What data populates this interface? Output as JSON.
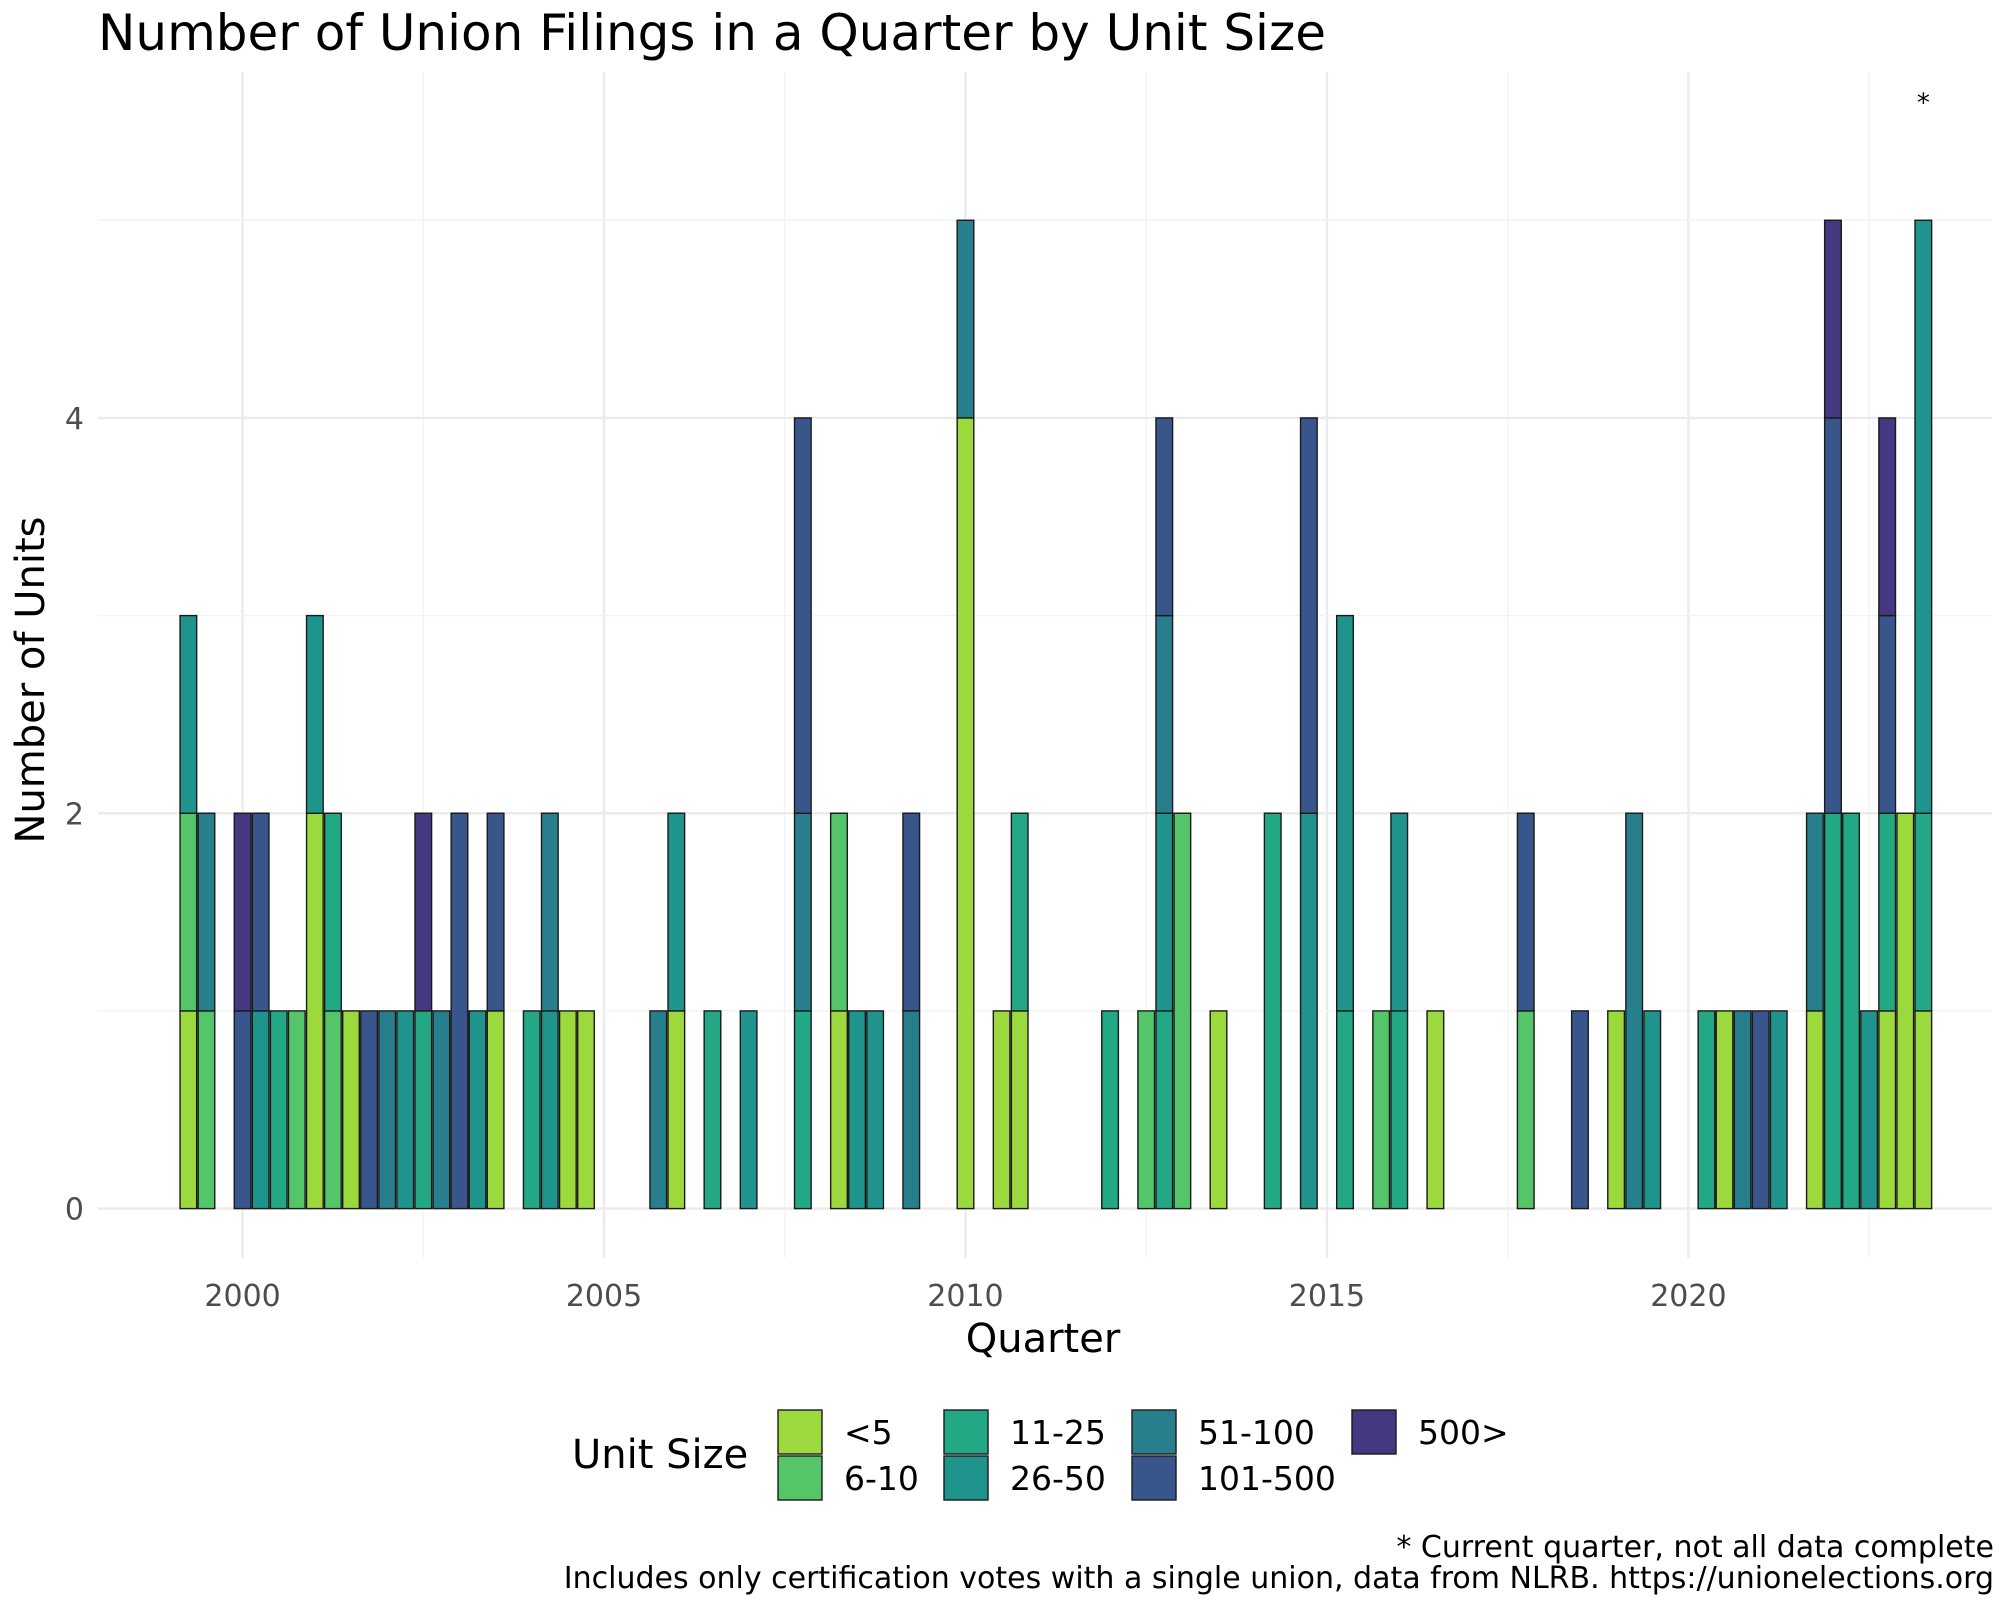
{
  "chart_data": {
    "type": "bar",
    "stacked": true,
    "title": "Number of Union Filings in a Quarter by Unit Size",
    "xlabel": "Quarter",
    "ylabel": "Number of Units",
    "xlim": [
      1998.0,
      2024.2
    ],
    "ylim": [
      -0.25,
      5.75
    ],
    "x_ticks": [
      2000,
      2005,
      2010,
      2015,
      2020
    ],
    "y_ticks": [
      0,
      2,
      4
    ],
    "grid": true,
    "legend": {
      "title": "Unit Size",
      "position": "bottom",
      "entries": [
        "<5",
        "6-10",
        "11-25",
        "26-50",
        "51-100",
        "101-500",
        "500>"
      ]
    },
    "colors": {
      "<5": "#9bd93c",
      "6-10": "#54c568",
      "11-25": "#22a884",
      "26-50": "#1f948c",
      "51-100": "#277f8e",
      "101-500": "#39568c",
      "500>": "#453781"
    },
    "bars": [
      {
        "x": 1999.25,
        "segments": {
          "<5": 1,
          "6-10": 1,
          "26-50": 1
        }
      },
      {
        "x": 1999.5,
        "segments": {
          "6-10": 1,
          "51-100": 1
        }
      },
      {
        "x": 2000.0,
        "segments": {
          "101-500": 1,
          "500>": 1
        }
      },
      {
        "x": 2000.25,
        "segments": {
          "26-50": 1,
          "101-500": 1
        }
      },
      {
        "x": 2000.5,
        "segments": {
          "11-25": 1
        }
      },
      {
        "x": 2000.75,
        "segments": {
          "6-10": 1
        }
      },
      {
        "x": 2001.0,
        "segments": {
          "<5": 2,
          "26-50": 1
        }
      },
      {
        "x": 2001.25,
        "segments": {
          "6-10": 1,
          "11-25": 1
        }
      },
      {
        "x": 2001.5,
        "segments": {
          "<5": 1
        }
      },
      {
        "x": 2001.75,
        "segments": {
          "101-500": 1
        }
      },
      {
        "x": 2002.0,
        "segments": {
          "51-100": 1
        }
      },
      {
        "x": 2002.25,
        "segments": {
          "26-50": 1
        }
      },
      {
        "x": 2002.5,
        "segments": {
          "11-25": 1,
          "500>": 1
        }
      },
      {
        "x": 2002.75,
        "segments": {
          "51-100": 1
        }
      },
      {
        "x": 2003.0,
        "segments": {
          "101-500": 2
        }
      },
      {
        "x": 2003.25,
        "segments": {
          "26-50": 1
        }
      },
      {
        "x": 2003.5,
        "segments": {
          "<5": 1,
          "101-500": 1
        }
      },
      {
        "x": 2004.0,
        "segments": {
          "11-25": 1
        }
      },
      {
        "x": 2004.25,
        "segments": {
          "26-50": 1,
          "51-100": 1
        }
      },
      {
        "x": 2004.5,
        "segments": {
          "<5": 1
        }
      },
      {
        "x": 2004.75,
        "segments": {
          "<5": 1
        }
      },
      {
        "x": 2005.75,
        "segments": {
          "51-100": 1
        }
      },
      {
        "x": 2006.0,
        "segments": {
          "<5": 1,
          "26-50": 1
        }
      },
      {
        "x": 2006.5,
        "segments": {
          "11-25": 1
        }
      },
      {
        "x": 2007.0,
        "segments": {
          "26-50": 1
        }
      },
      {
        "x": 2007.75,
        "segments": {
          "11-25": 1,
          "51-100": 1,
          "101-500": 2
        }
      },
      {
        "x": 2008.25,
        "segments": {
          "<5": 1,
          "6-10": 1
        }
      },
      {
        "x": 2008.5,
        "segments": {
          "26-50": 1
        }
      },
      {
        "x": 2008.75,
        "segments": {
          "26-50": 1
        }
      },
      {
        "x": 2009.25,
        "segments": {
          "51-100": 1,
          "101-500": 1
        }
      },
      {
        "x": 2010.0,
        "segments": {
          "<5": 4,
          "51-100": 1
        }
      },
      {
        "x": 2010.5,
        "segments": {
          "<5": 1
        }
      },
      {
        "x": 2010.75,
        "segments": {
          "<5": 1,
          "11-25": 1
        }
      },
      {
        "x": 2012.0,
        "segments": {
          "11-25": 1
        }
      },
      {
        "x": 2012.5,
        "segments": {
          "6-10": 1
        }
      },
      {
        "x": 2012.75,
        "segments": {
          "11-25": 1,
          "26-50": 1,
          "51-100": 1,
          "101-500": 1
        }
      },
      {
        "x": 2013.0,
        "segments": {
          "6-10": 2
        }
      },
      {
        "x": 2013.5,
        "segments": {
          "<5": 1
        }
      },
      {
        "x": 2014.25,
        "segments": {
          "11-25": 2
        }
      },
      {
        "x": 2014.75,
        "segments": {
          "26-50": 2,
          "101-500": 2
        }
      },
      {
        "x": 2015.25,
        "segments": {
          "11-25": 1,
          "26-50": 2
        }
      },
      {
        "x": 2015.75,
        "segments": {
          "6-10": 1
        }
      },
      {
        "x": 2016.0,
        "segments": {
          "11-25": 1,
          "26-50": 1
        }
      },
      {
        "x": 2016.5,
        "segments": {
          "<5": 1
        }
      },
      {
        "x": 2017.75,
        "segments": {
          "6-10": 1,
          "101-500": 1
        }
      },
      {
        "x": 2018.5,
        "segments": {
          "101-500": 1
        }
      },
      {
        "x": 2019.0,
        "segments": {
          "<5": 1
        }
      },
      {
        "x": 2019.25,
        "segments": {
          "51-100": 2
        }
      },
      {
        "x": 2019.5,
        "segments": {
          "26-50": 1
        }
      },
      {
        "x": 2020.25,
        "segments": {
          "11-25": 1
        }
      },
      {
        "x": 2020.5,
        "segments": {
          "<5": 1
        }
      },
      {
        "x": 2020.75,
        "segments": {
          "51-100": 1
        }
      },
      {
        "x": 2021.0,
        "segments": {
          "101-500": 1
        }
      },
      {
        "x": 2021.25,
        "segments": {
          "26-50": 1
        }
      },
      {
        "x": 2021.75,
        "segments": {
          "<5": 1,
          "51-100": 1
        }
      },
      {
        "x": 2022.0,
        "segments": {
          "11-25": 2,
          "101-500": 2,
          "500>": 1
        }
      },
      {
        "x": 2022.25,
        "segments": {
          "11-25": 2
        }
      },
      {
        "x": 2022.5,
        "segments": {
          "26-50": 1
        }
      },
      {
        "x": 2022.75,
        "segments": {
          "<5": 1,
          "11-25": 1,
          "101-500": 1,
          "500>": 1
        }
      },
      {
        "x": 2023.0,
        "segments": {
          "<5": 2
        }
      },
      {
        "x": 2023.25,
        "segments": {
          "<5": 1,
          "11-25": 1,
          "26-50": 3
        }
      }
    ],
    "annotations": [
      {
        "x": 2023.25,
        "y": 5.55,
        "text": "*"
      }
    ],
    "caption_line1": "* Current quarter, not all data complete",
    "caption_line2": "Includes only certification votes with a single union, data from NLRB. https://unionelections.org"
  }
}
